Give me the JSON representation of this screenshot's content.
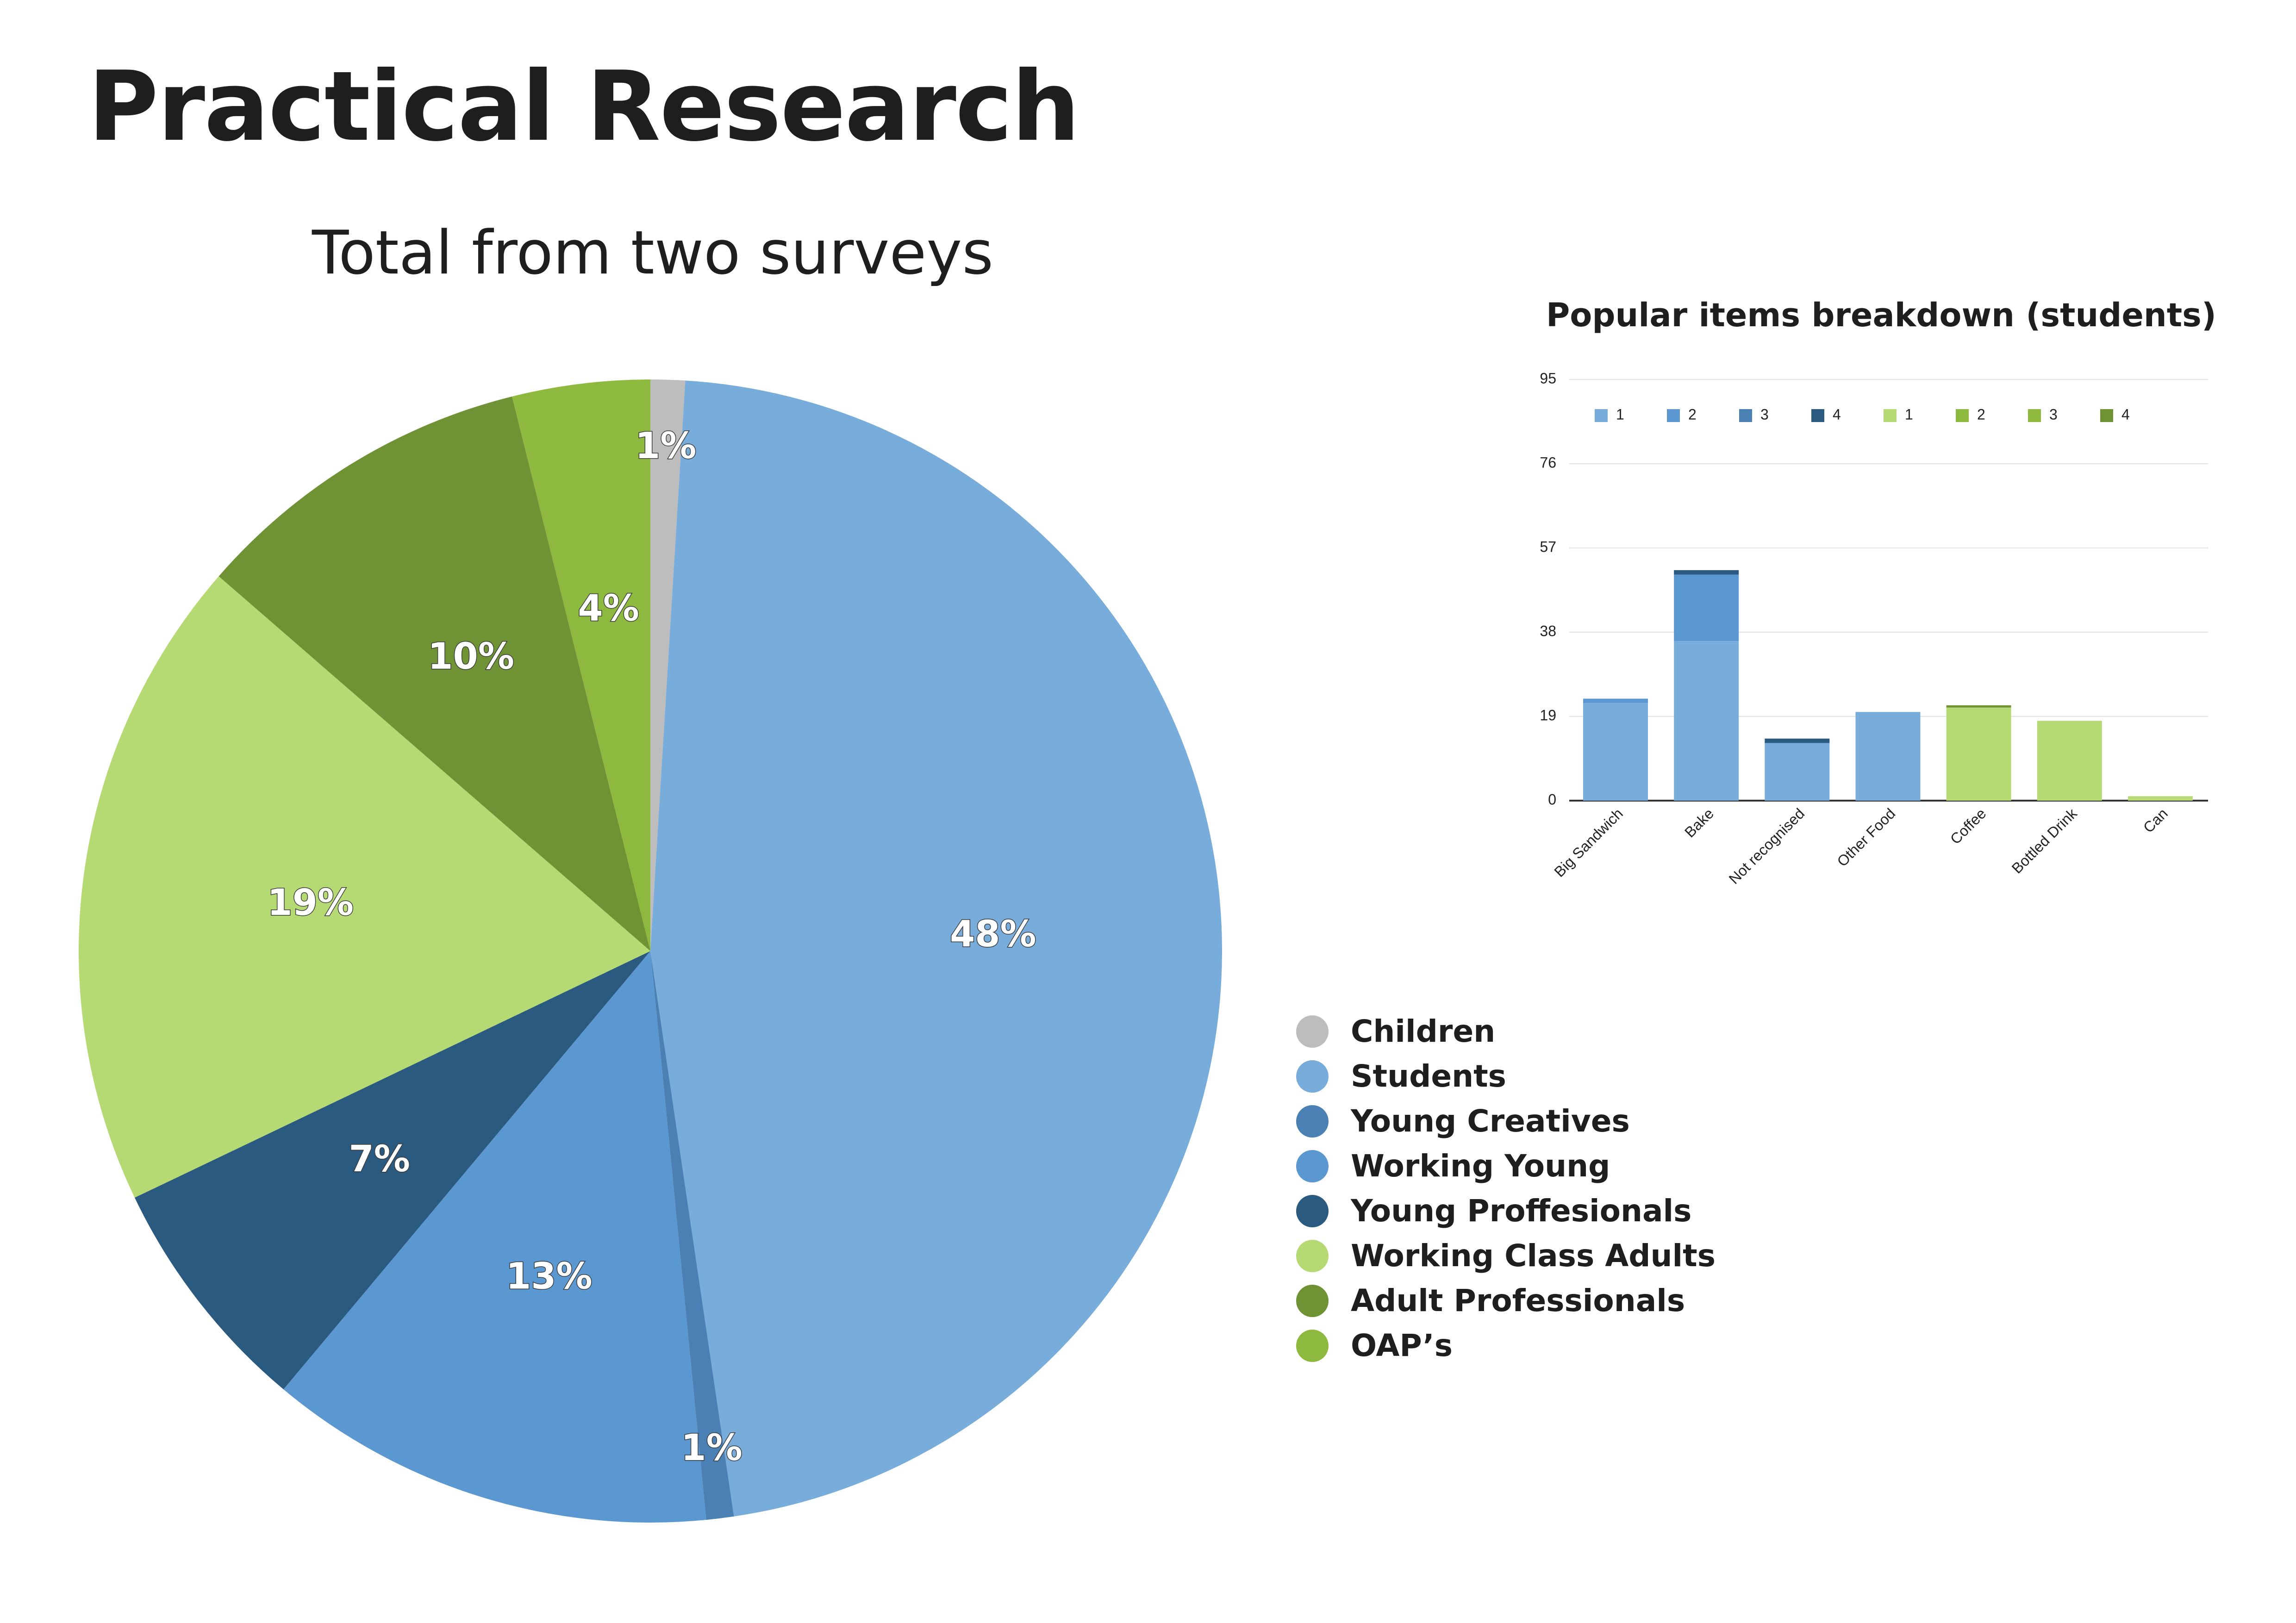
{
  "page": {
    "title": "Practical Research"
  },
  "chart_data": [
    {
      "type": "pie",
      "title": "Total from two surveys",
      "slices": [
        {
          "label": "Children",
          "value": 1,
          "display": "1%",
          "color": "#bdbdbd"
        },
        {
          "label": "Students",
          "value": 48,
          "display": "48%",
          "color": "#77acdb"
        },
        {
          "label": "Young Creatives",
          "value": 0.8,
          "display": "1%",
          "color": "#4a80b4"
        },
        {
          "label": "Working Young",
          "value": 13,
          "display": "13%",
          "color": "#5b97d0"
        },
        {
          "label": "Young Proffesionals",
          "value": 7,
          "display": "7%",
          "color": "#2b5a80"
        },
        {
          "label": "Working Class Adults",
          "value": 19,
          "display": "19%",
          "color": "#b6da73"
        },
        {
          "label": "Adult Professionals",
          "value": 10,
          "display": "10%",
          "color": "#6f9334"
        },
        {
          "label": "OAP’s",
          "value": 4,
          "display": "4%",
          "color": "#8dba3e"
        }
      ],
      "start": "12 o'clock, clockwise",
      "legend": "right"
    },
    {
      "type": "bar",
      "stacked": true,
      "title": "Popular items breakdown (students)",
      "categories": [
        "Big Sandwich",
        "Bake",
        "Not recognised",
        "Other Food",
        "Coffee",
        "Bottled Drink",
        "Can"
      ],
      "ylim": [
        0,
        95
      ],
      "yticks": [
        0,
        19,
        38,
        57,
        76,
        95
      ],
      "grid": true,
      "legend": "top",
      "series": [
        {
          "name": "1",
          "color": "#77acdb",
          "values": [
            22,
            36,
            13,
            20,
            0,
            0,
            0
          ]
        },
        {
          "name": "2",
          "color": "#5b97d0",
          "values": [
            1,
            15,
            0,
            0,
            0,
            0,
            0
          ]
        },
        {
          "name": "3",
          "color": "#4a80b4",
          "values": [
            0,
            0,
            0,
            0,
            0,
            0,
            0
          ]
        },
        {
          "name": "4",
          "color": "#2b5a80",
          "values": [
            0,
            1,
            1,
            0,
            0,
            0,
            0
          ]
        },
        {
          "name": "1",
          "color": "#b6da73",
          "values": [
            0,
            0,
            0,
            0,
            21,
            18,
            1
          ]
        },
        {
          "name": "2",
          "color": "#8dba3e",
          "values": [
            0,
            0,
            0,
            0,
            0,
            0,
            0
          ]
        },
        {
          "name": "3",
          "color": "#8dba3e",
          "values": [
            0,
            0,
            0,
            0,
            0,
            0,
            0
          ]
        },
        {
          "name": "4",
          "color": "#6f9334",
          "values": [
            0,
            0,
            0,
            0,
            0.5,
            0,
            0
          ]
        }
      ]
    }
  ]
}
